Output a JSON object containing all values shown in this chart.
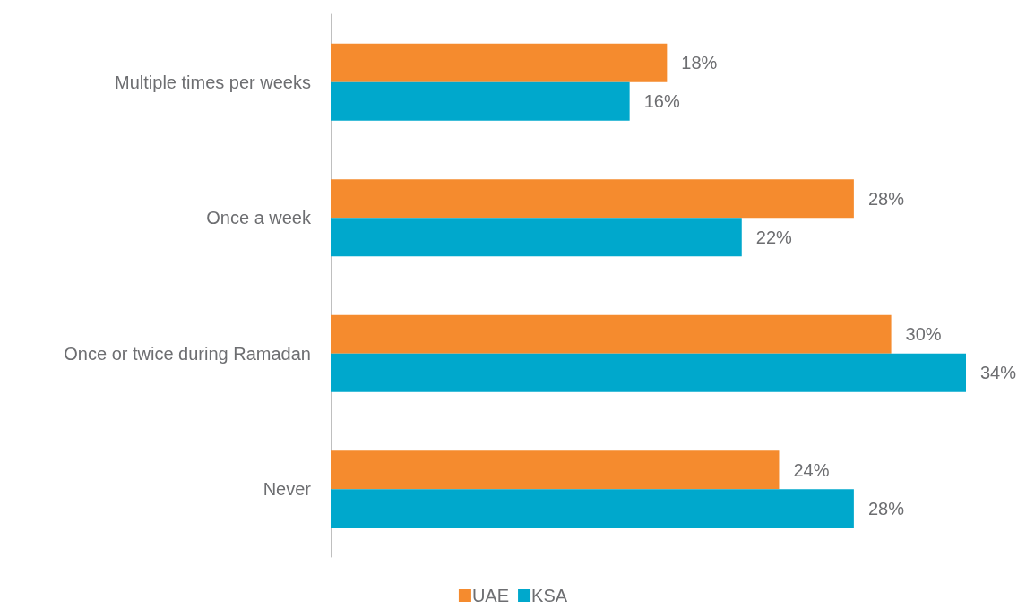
{
  "chart_data": {
    "type": "bar",
    "orientation": "horizontal",
    "categories": [
      "Multiple times per weeks",
      "Once a week",
      "Once or twice during Ramadan",
      "Never"
    ],
    "series": [
      {
        "name": "UAE",
        "color": "#f58b2e",
        "values": [
          18,
          28,
          30,
          24
        ],
        "value_labels": [
          "18%",
          "28%",
          "30%",
          "24%"
        ]
      },
      {
        "name": "KSA",
        "color": "#00a8cc",
        "values": [
          16,
          22,
          34,
          28
        ],
        "value_labels": [
          "16%",
          "22%",
          "34%",
          "28%"
        ]
      }
    ],
    "legend": "bottom"
  }
}
